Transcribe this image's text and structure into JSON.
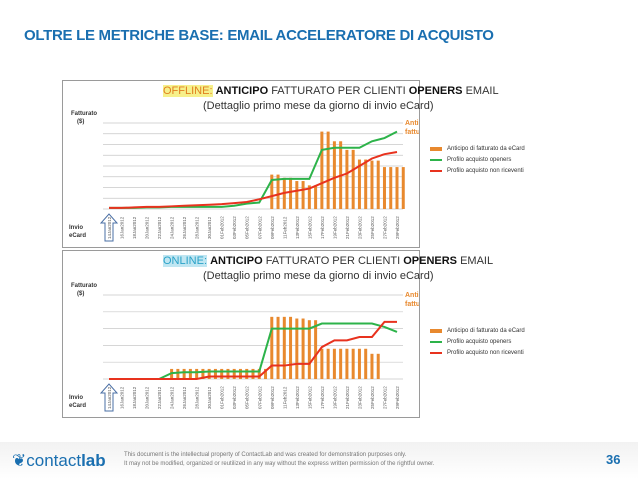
{
  "slide": {
    "title": "OLTRE LE METRICHE BASE: EMAIL ACCELERATORE DI ACQUISTO",
    "page_number": "36"
  },
  "footer": {
    "logo": "contactlab",
    "legal_line1": "This document is the intellectual property of ContactLab and was created for demonstration purposes only.",
    "legal_line2": "It may not be modified, organized or reutilized in any way without the express written permission of the rightful owner."
  },
  "colors": {
    "title": "#1a6fb0",
    "bars": "#e8892e",
    "openers": "#2db34a",
    "non_riceventi": "#e8321e"
  },
  "chart_data": [
    {
      "type": "bar+line",
      "title_prefix": "OFFLINE:",
      "title_bold1": "ANTICIPO",
      "title_mid": " FATTURATO PER CLIENTI ",
      "title_bold2": "OPENERS",
      "title_end": " EMAIL",
      "subtitle": "(Dettaglio primo mese da giorno di invio eCard)",
      "ylabel": "Fatturato ($)",
      "xlabel": "Invio eCard",
      "right_label": "Anticipo fatturato ($)",
      "ylim": [
        0,
        8
      ],
      "grid": true,
      "legend_placement": "right",
      "categories": [
        "14Jan2012",
        "16Jan2012",
        "18Jan2012",
        "20Jan2012",
        "22Jan2012",
        "24Jan2012",
        "26Jan2012",
        "28Jan2012",
        "30Jan2012",
        "01Feb2012",
        "03Feb2012",
        "05Feb2012",
        "07Feb2012",
        "09Feb2012",
        "11Feb2012",
        "13Feb2012",
        "15Feb2012",
        "17Feb2012",
        "19Feb2012",
        "21Feb2012",
        "23Feb2012",
        "25Feb2012",
        "27Feb2012",
        "29Feb2012"
      ],
      "series": [
        {
          "name": "Anticipo di fatturato  da eCard",
          "kind": "bar",
          "values": [
            0,
            0,
            0,
            0,
            0,
            0,
            0,
            0,
            0,
            0,
            0,
            0,
            0,
            3.2,
            2.9,
            2.6,
            2.2,
            7.2,
            6.3,
            5.5,
            4.6,
            4.5,
            3.9,
            3.9
          ]
        },
        {
          "name": "Profilo acquisto openers",
          "kind": "line",
          "values": [
            0.1,
            0.1,
            0.1,
            0.15,
            0.15,
            0.2,
            0.2,
            0.2,
            0.2,
            0.2,
            0.3,
            0.5,
            0.6,
            2.7,
            2.8,
            2.8,
            2.8,
            5.5,
            5.7,
            5.7,
            5.7,
            6.3,
            6.6,
            7.2
          ]
        },
        {
          "name": "Profilo acquisto non riceventi",
          "kind": "line",
          "values": [
            0.1,
            0.1,
            0.15,
            0.2,
            0.2,
            0.25,
            0.3,
            0.35,
            0.4,
            0.45,
            0.55,
            0.65,
            0.9,
            1.2,
            1.5,
            1.7,
            1.9,
            2.4,
            2.9,
            3.3,
            4.0,
            4.7,
            5.1,
            5.3
          ]
        }
      ]
    },
    {
      "type": "bar+line",
      "title_prefix": "ONLINE:",
      "title_bold1": "ANTICIPO",
      "title_mid": " FATTURATO PER CLIENTI ",
      "title_bold2": "OPENERS",
      "title_end": " EMAIL",
      "subtitle": "(Dettaglio primo mese da giorno di invio eCard)",
      "ylabel": "Fatturato ($)",
      "xlabel": "Invio eCard",
      "right_label": "Anticipo fatturato ($)",
      "ylim": [
        0,
        5
      ],
      "grid": true,
      "legend_placement": "right",
      "categories": [
        "14Jan2012",
        "16Jan2012",
        "18Jan2012",
        "20Jan2012",
        "22Jan2012",
        "24Jan2012",
        "26Jan2012",
        "28Jan2012",
        "30Jan2012",
        "01Feb2012",
        "03Feb2012",
        "05Feb2012",
        "07Feb2012",
        "09Feb2012",
        "11Feb2012",
        "13Feb2012",
        "15Feb2012",
        "17Feb2012",
        "19Feb2012",
        "21Feb2012",
        "23Feb2012",
        "25Feb2012",
        "27Feb2012",
        "29Feb2012"
      ],
      "series": [
        {
          "name": "Anticipo di fatturato  da eCard",
          "kind": "bar",
          "values": [
            0,
            0,
            0,
            0,
            0,
            0.6,
            0.6,
            0.6,
            0.6,
            0.6,
            0.6,
            0.6,
            0.6,
            3.7,
            3.7,
            3.6,
            3.5,
            1.8,
            1.8,
            1.8,
            1.8,
            1.5,
            0,
            0
          ]
        },
        {
          "name": "Profilo acquisto openers",
          "kind": "line",
          "values": [
            0,
            0,
            0,
            0,
            0,
            0.35,
            0.4,
            0.4,
            0.45,
            0.45,
            0.45,
            0.45,
            0.45,
            3.0,
            3.0,
            3.0,
            3.0,
            3.3,
            3.3,
            3.3,
            3.3,
            3.3,
            3.1,
            2.8
          ]
        },
        {
          "name": "Profilo acquisto non riceventi",
          "kind": "line",
          "values": [
            0,
            0,
            0,
            0,
            0,
            0,
            0,
            0,
            0.15,
            0.15,
            0.15,
            0.15,
            0.15,
            0.8,
            0.8,
            0.9,
            0.9,
            1.9,
            2.3,
            2.3,
            2.5,
            2.5,
            3.4,
            3.4
          ]
        }
      ]
    }
  ]
}
